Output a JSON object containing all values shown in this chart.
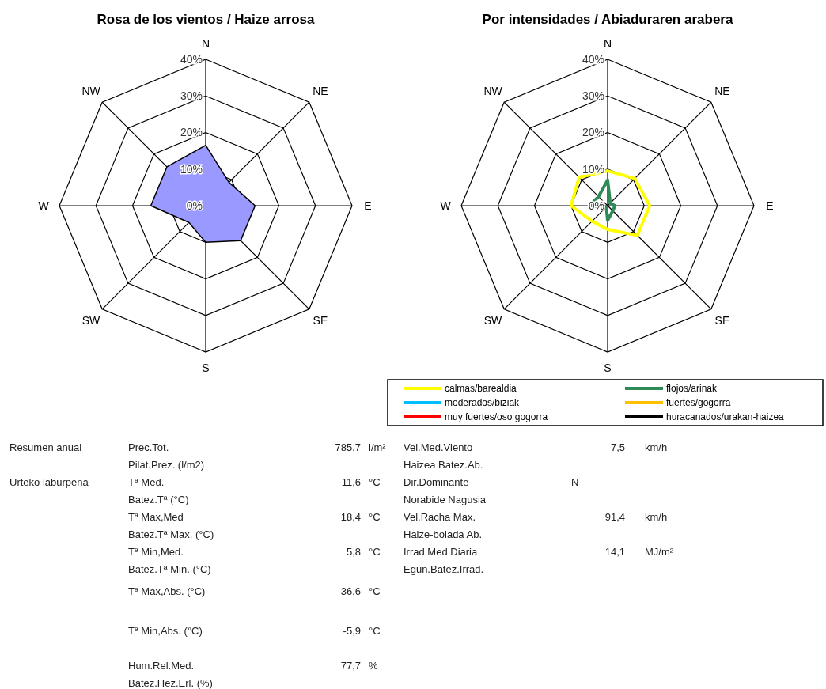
{
  "chart_data": [
    {
      "type": "radar",
      "title": "Rosa de los vientos / Haize arrosa",
      "categories": [
        "N",
        "NE",
        "E",
        "SE",
        "S",
        "SW",
        "W",
        "NW"
      ],
      "ylim": [
        0,
        40
      ],
      "yticks": [
        {
          "value": 0,
          "label": "0%"
        },
        {
          "value": 10,
          "label": "10%"
        },
        {
          "value": 20,
          "label": "20%"
        },
        {
          "value": 30,
          "label": "30%"
        },
        {
          "value": 40,
          "label": "40%"
        }
      ],
      "grid": true,
      "series": [
        {
          "type": "area",
          "color": "#9999ff",
          "values": [
            16.5,
            9,
            13.5,
            13.5,
            10,
            6.5,
            15,
            15
          ]
        }
      ]
    },
    {
      "type": "radar",
      "title": "Por intensidades / Abiaduraren arabera",
      "categories": [
        "N",
        "NE",
        "E",
        "SE",
        "S",
        "SW",
        "W",
        "NW"
      ],
      "ylim": [
        0,
        40
      ],
      "yticks": [
        {
          "value": 0,
          "label": "0%"
        },
        {
          "value": 10,
          "label": "10%"
        },
        {
          "value": 20,
          "label": "20%"
        },
        {
          "value": 30,
          "label": "30%"
        },
        {
          "value": 40,
          "label": "40%"
        }
      ],
      "grid": true,
      "legend": "bottom",
      "series": [
        {
          "name": "calmas/barealdia",
          "color": "#ffff00",
          "values": [
            9.5,
            10.5,
            11.5,
            11.5,
            6.5,
            6,
            10,
            11
          ]
        },
        {
          "name": "flojos/arinak",
          "color": "#2e8b57",
          "values": [
            7,
            1,
            2,
            2,
            4,
            0.5,
            5,
            3.5
          ]
        },
        {
          "name": "moderados/biziak",
          "color": "#00bfff",
          "values": [
            null,
            null,
            null,
            null,
            null,
            null,
            null,
            null
          ]
        },
        {
          "name": "fuertes/gogorra",
          "color": "#ffc000",
          "values": [
            null,
            null,
            null,
            null,
            null,
            null,
            null,
            null
          ]
        },
        {
          "name": "muy fuertes/oso gogorra",
          "color": "#ff0000",
          "values": [
            null,
            null,
            null,
            null,
            null,
            null,
            null,
            null
          ]
        },
        {
          "name": "huracanados/urakan-haizea",
          "color": "#000000",
          "values": [
            null,
            null,
            null,
            null,
            null,
            null,
            null,
            null
          ]
        }
      ]
    },
    {
      "type": "other",
      "annotations": [
        "Resumen anual",
        "Urteko laburpena",
        "Prec.Tot.",
        "Pilat.Prez. (l/m2)",
        "785,7",
        "l/m²",
        "Tª Med.",
        "Batez.Tª (°C)",
        "11,6",
        "°C",
        "Tª Max,Med",
        "Batez.Tª Max. (°C)",
        "18,4",
        "°C",
        "Tª Min,Med.",
        "Batez.Tª Min. (°C)",
        "5,8",
        "°C",
        "Tª Max,Abs. (°C)",
        "36,6",
        "°C",
        "Tª Min,Abs. (°C)",
        "-5,9",
        "°C",
        "Hum.Rel.Med.",
        "Batez.Hez.Erl. (%)",
        "77,7",
        "%",
        "Vel.Med.Viento",
        "Haizea Batez.Ab.",
        "7,5",
        "km/h",
        "Dir.Dominante",
        "Norabide Nagusia",
        "N",
        "Vel.Racha Max.",
        "Haize-bolada Ab.",
        "91,4",
        "km/h",
        "Irrad.Med.Diaria",
        "Egun.Batez.Irrad.",
        "14,1",
        "MJ/m²"
      ]
    }
  ]
}
